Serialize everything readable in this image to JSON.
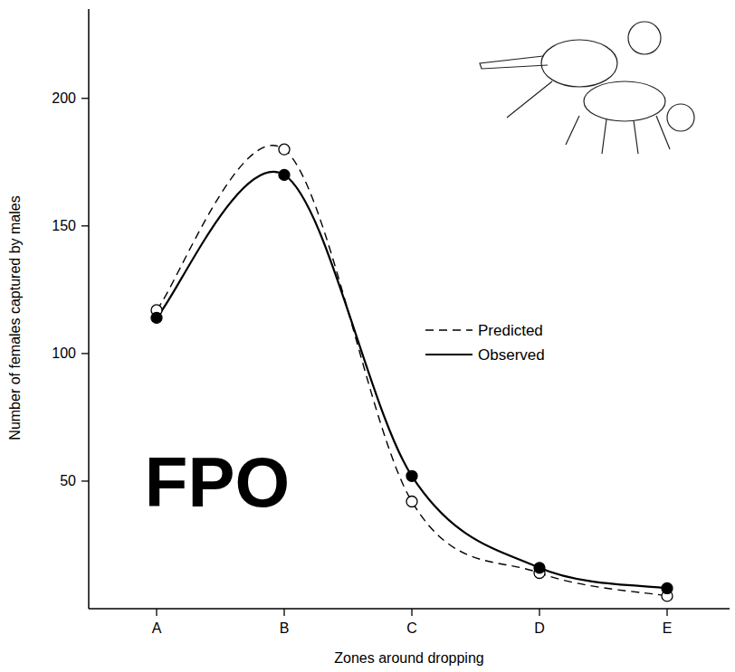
{
  "chart_data": {
    "type": "line",
    "x_label": "Zones around dropping",
    "y_label": "Number of females captured by males",
    "annotations": [
      "FPO"
    ],
    "categories": [
      "A",
      "B",
      "C",
      "D",
      "E"
    ],
    "series": [
      {
        "name": "Predicted",
        "color": "#000000",
        "line_style": "dashed",
        "marker": "open-circle",
        "values": [
          117,
          180,
          42,
          14,
          5
        ]
      },
      {
        "name": "Observed",
        "color": "#000000",
        "line_style": "solid",
        "marker": "filled-circle",
        "values": [
          114,
          170,
          52,
          16,
          8
        ]
      }
    ],
    "ylim": [
      0,
      235
    ],
    "yticks": [
      50,
      100,
      150,
      200
    ],
    "grid": false,
    "legend": "right"
  }
}
